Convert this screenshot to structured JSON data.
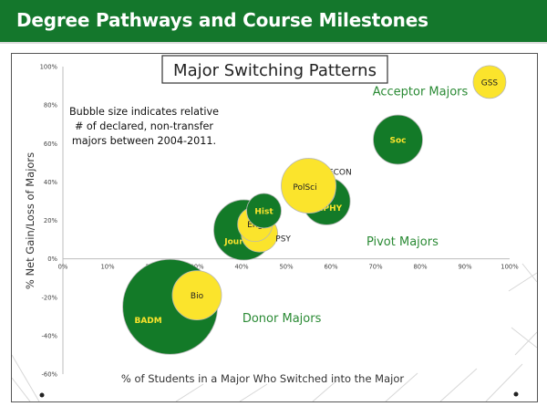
{
  "header": {
    "title": "Degree Pathways and Course Milestones"
  },
  "colors": {
    "header_green": "#14772c",
    "bubble_green": "#137a28",
    "bubble_yellow": "#fbe42c",
    "label_green": "#2a8a34",
    "label_yellow": "#fbe42c"
  },
  "chart_data": {
    "type": "bubble",
    "title": "Major Switching Patterns",
    "xlabel": "% of Students in a Major Who Switched into the Major",
    "ylabel": "% Net Gain/Loss of Majors",
    "xlim": [
      0,
      1
    ],
    "ylim": [
      -0.6,
      1
    ],
    "xticks": [
      0,
      0.1,
      0.2,
      0.3,
      0.4,
      0.5,
      0.6,
      0.7,
      0.8,
      0.9,
      1
    ],
    "yticks": [
      -0.6,
      -0.4,
      -0.2,
      0,
      0.2,
      0.4,
      0.6,
      0.8,
      1
    ],
    "xtick_labels": [
      "0%",
      "10%",
      "20%",
      "30%",
      "40%",
      "50%",
      "60%",
      "70%",
      "80%",
      "90%",
      "100%"
    ],
    "ytick_labels": [
      "-60%",
      "-40%",
      "-20%",
      "0%",
      "20%",
      "40%",
      "60%",
      "80%",
      "100%"
    ],
    "grid": false,
    "note": "Bubble size indicates relative # of declared, non-transfer majors between 2004-2011.",
    "note_lines": [
      "Bubble size indicates relative",
      "# of declared, non-transfer",
      "majors between 2004-2011."
    ],
    "regions": [
      {
        "label": "Acceptor Majors",
        "x": 0.8,
        "y": 0.85
      },
      {
        "label": "Pivot Majors",
        "x": 0.76,
        "y": 0.07
      },
      {
        "label": "Donor Majors",
        "x": 0.49,
        "y": -0.33
      }
    ],
    "bubbles": [
      {
        "label": "BADM",
        "x": 0.24,
        "y": -0.25,
        "size": 52,
        "color": "green",
        "label_dx": -24,
        "label_dy": 14,
        "label_color": "#fbe42c"
      },
      {
        "label": "Bio",
        "x": 0.3,
        "y": -0.19,
        "size": 27,
        "color": "yellow",
        "label_dx": 0,
        "label_dy": 0,
        "label_color": "#222222"
      },
      {
        "label": "Jour",
        "x": 0.405,
        "y": 0.15,
        "size": 33,
        "color": "green",
        "label_dx": -11,
        "label_dy": 12,
        "label_color": "#fbe42c"
      },
      {
        "label": "PSY",
        "x": 0.44,
        "y": 0.13,
        "size": 20,
        "color": "yellow",
        "label_dx": 26,
        "label_dy": 5,
        "label_color": "#222222"
      },
      {
        "label": "Eng",
        "x": 0.43,
        "y": 0.18,
        "size": 19,
        "color": "yellow",
        "label_dx": 0,
        "label_dy": 0,
        "label_color": "#222222"
      },
      {
        "label": "Hist",
        "x": 0.45,
        "y": 0.25,
        "size": 19,
        "color": "green",
        "label_dx": 0,
        "label_dy": 0,
        "label_color": "#fbe42c"
      },
      {
        "label": "HPHY",
        "x": 0.59,
        "y": 0.3,
        "size": 26,
        "color": "green",
        "label_dx": 3,
        "label_dy": 7,
        "label_color": "#fbe42c"
      },
      {
        "label": "ECON",
        "x": 0.565,
        "y": 0.36,
        "size": 22,
        "color": "yellow",
        "label_dx": 27,
        "label_dy": -20,
        "label_color": "#222222"
      },
      {
        "label": "PolSci",
        "x": 0.55,
        "y": 0.38,
        "size": 30,
        "color": "yellow",
        "label_dx": -4,
        "label_dy": 1,
        "label_color": "#222222"
      },
      {
        "label": "Soc",
        "x": 0.75,
        "y": 0.62,
        "size": 27,
        "color": "green",
        "label_dx": 0,
        "label_dy": 0,
        "label_color": "#fbe42c"
      },
      {
        "label": "GSS",
        "x": 0.955,
        "y": 0.92,
        "size": 18,
        "color": "yellow",
        "label_dx": 0,
        "label_dy": 0,
        "label_color": "#222222"
      }
    ]
  }
}
